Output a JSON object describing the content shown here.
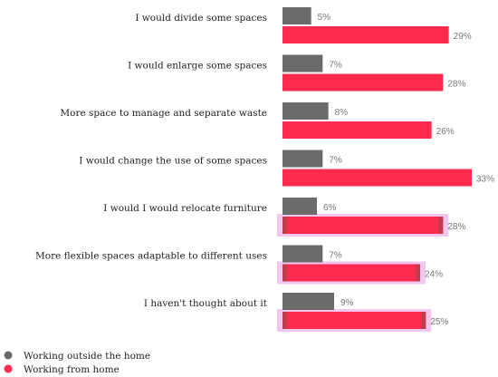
{
  "chart_data": {
    "type": "bar",
    "orientation": "horizontal",
    "categories": [
      "I would divide some spaces",
      "I would enlarge some spaces",
      "More space to manage and separate waste",
      "I would change the use of some spaces",
      "I would I would relocate furniture",
      "More flexible spaces adaptable to different uses",
      "I haven't thought about it"
    ],
    "series": [
      {
        "name": "Working outside the home",
        "color": "#6b6b6b",
        "values": [
          5,
          7,
          8,
          7,
          6,
          7,
          9
        ],
        "labels": [
          "5%",
          "7%",
          "8%",
          "7%",
          "6%",
          "7%",
          "9%"
        ]
      },
      {
        "name": "Working from home",
        "color": "#ff2b4f",
        "values": [
          29,
          28,
          26,
          33,
          28,
          24,
          25
        ],
        "labels": [
          "29%",
          "28%",
          "26%",
          "33%",
          "28%",
          "24%",
          "25%"
        ]
      }
    ],
    "highlighted_categories": [
      4,
      5,
      6
    ],
    "highlight_color": "#f2c6ef",
    "xlim": [
      0,
      33
    ],
    "unit": "%",
    "legend_position": "bottom-left",
    "grid": false
  }
}
